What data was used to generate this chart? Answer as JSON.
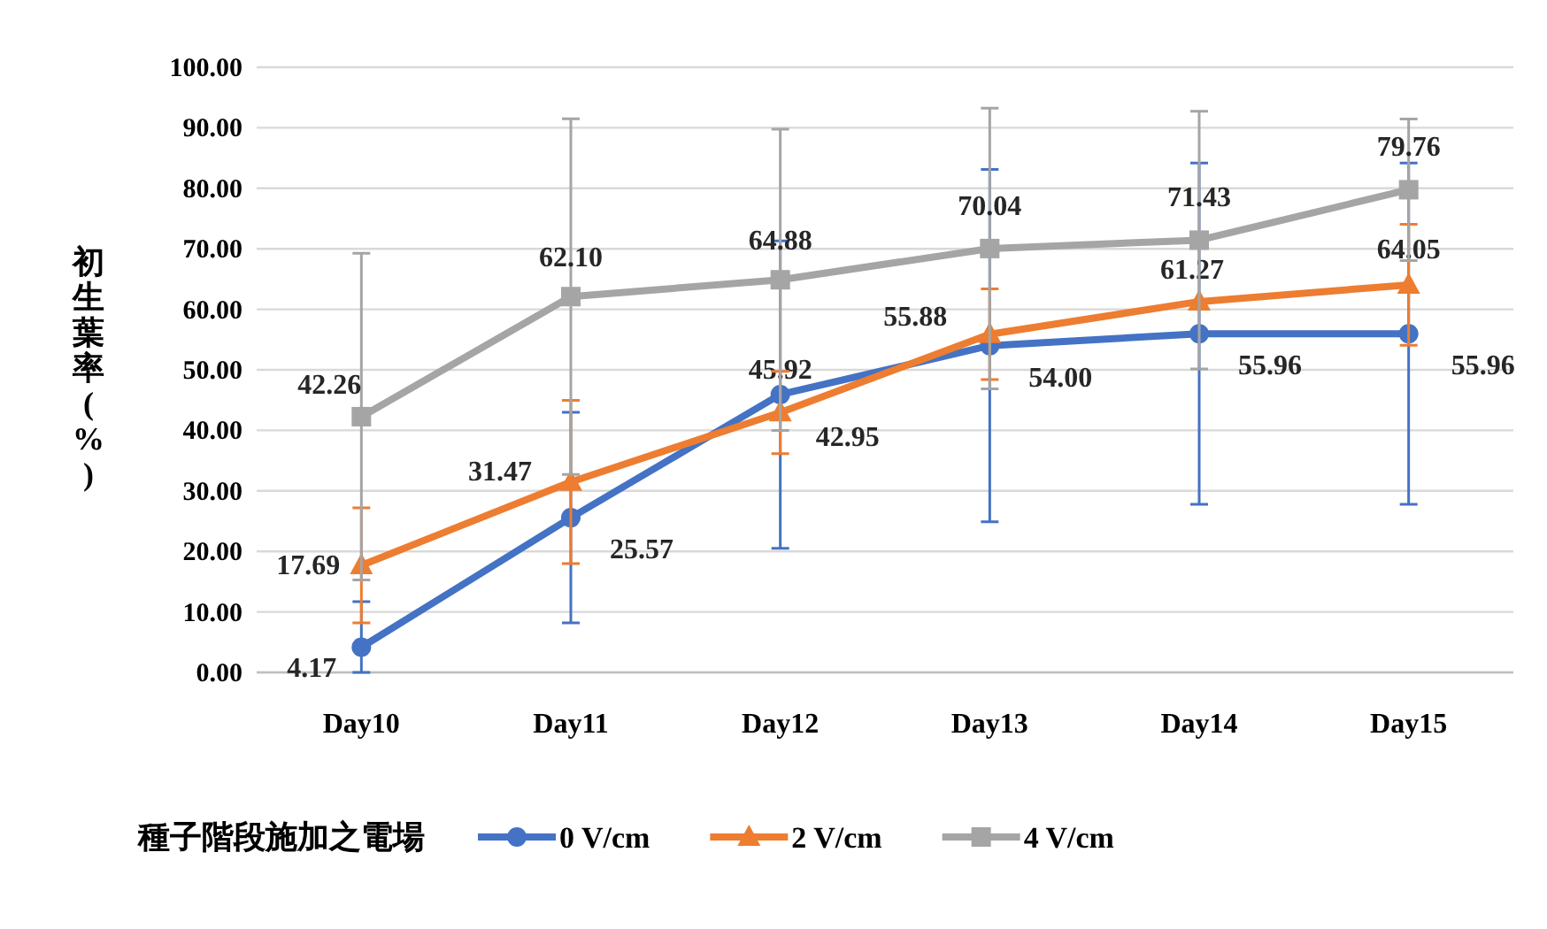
{
  "chart_data": {
    "type": "line",
    "ylabel": "初生葉率(%)",
    "legend_title": "種子階段施加之電場",
    "categories": [
      "Day10",
      "Day11",
      "Day12",
      "Day13",
      "Day14",
      "Day15"
    ],
    "series": [
      {
        "name": "0 V/cm",
        "color": "#4472c4",
        "marker": "circle",
        "values": [
          4.17,
          25.57,
          45.92,
          54.0,
          55.96,
          55.96
        ],
        "value_labels": [
          "4.17",
          "25.57",
          "45.92",
          "54.00",
          "55.96",
          "55.96"
        ],
        "errors": [
          [
            0,
            11.7
          ],
          17.4,
          25.4,
          29.1,
          28.2,
          28.2
        ]
      },
      {
        "name": "2 V/cm",
        "color": "#ed7d31",
        "marker": "triangle",
        "values": [
          17.69,
          31.47,
          42.95,
          55.88,
          61.27,
          64.05
        ],
        "value_labels": [
          "17.69",
          "31.47",
          "42.95",
          "55.88",
          "61.27",
          "64.05"
        ],
        "errors": [
          9.5,
          13.5,
          6.8,
          7.5,
          null,
          10.0
        ]
      },
      {
        "name": "4 V/cm",
        "color": "#a5a5a5",
        "marker": "square",
        "values": [
          42.26,
          62.1,
          64.88,
          70.04,
          71.43,
          79.76
        ],
        "value_labels": [
          "42.26",
          "62.10",
          "64.88",
          "70.04",
          "71.43",
          "79.76"
        ],
        "errors": [
          27.0,
          29.4,
          24.9,
          23.2,
          21.3,
          11.7
        ]
      }
    ],
    "ylim": [
      0,
      100
    ],
    "yticks": [
      {
        "value": 0,
        "label": "0.00"
      },
      {
        "value": 10,
        "label": "10.00"
      },
      {
        "value": 20,
        "label": "20.00"
      },
      {
        "value": 30,
        "label": "30.00"
      },
      {
        "value": 40,
        "label": "40.00"
      },
      {
        "value": 50,
        "label": "50.00"
      },
      {
        "value": 60,
        "label": "60.00"
      },
      {
        "value": 70,
        "label": "70.00"
      },
      {
        "value": 80,
        "label": "80.00"
      },
      {
        "value": 90,
        "label": "90.00"
      },
      {
        "value": 100,
        "label": "100.00"
      }
    ],
    "grid": "y",
    "legend": "bottom",
    "line_style": "solid"
  }
}
